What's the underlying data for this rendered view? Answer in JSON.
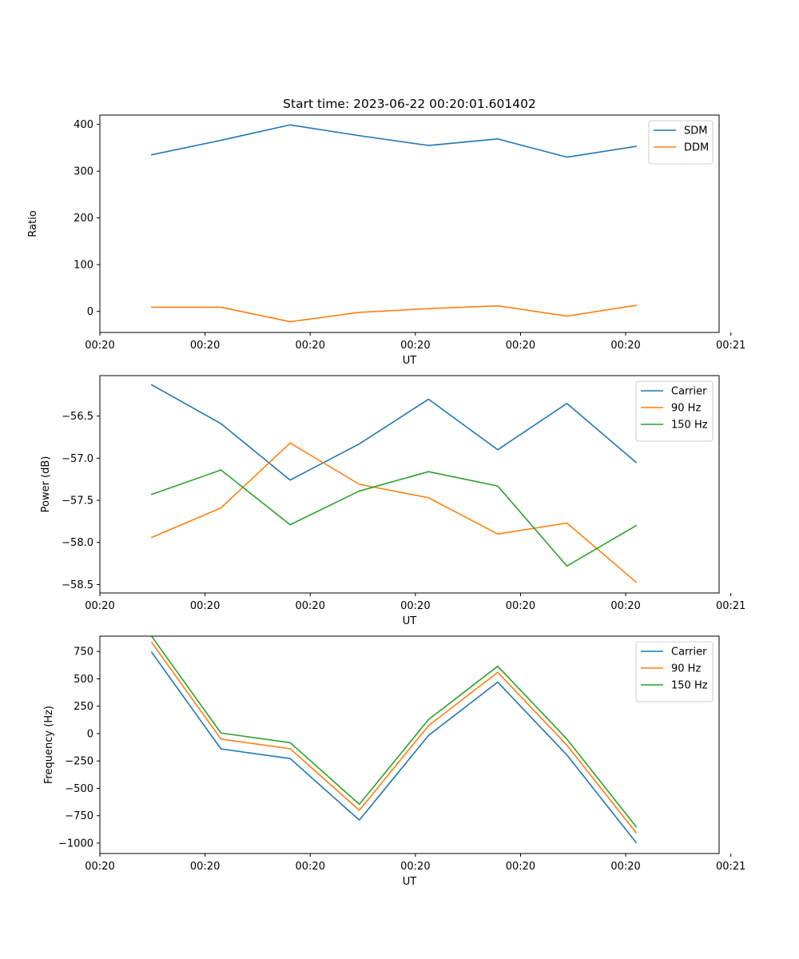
{
  "chart_data": [
    {
      "type": "line",
      "title": "Start time: 2023-06-22 00:20:01.601402",
      "xlabel": "UT",
      "ylabel": "Ratio",
      "x": [
        1,
        2,
        3,
        4,
        5,
        6,
        7,
        8
      ],
      "xlim": [
        0.25,
        9.2
      ],
      "ylim": [
        -45,
        420
      ],
      "xticks": [
        {
          "value": 0.25,
          "label": "00:20"
        },
        {
          "value": 1.77,
          "label": "00:20"
        },
        {
          "value": 3.29,
          "label": "00:20"
        },
        {
          "value": 4.81,
          "label": "00:20"
        },
        {
          "value": 6.33,
          "label": "00:20"
        },
        {
          "value": 7.85,
          "label": "00:20"
        },
        {
          "value": 9.37,
          "label": "00:21"
        }
      ],
      "yticks": [
        {
          "value": 0,
          "label": "0"
        },
        {
          "value": 100,
          "label": "100"
        },
        {
          "value": 200,
          "label": "200"
        },
        {
          "value": 300,
          "label": "300"
        },
        {
          "value": 400,
          "label": "400"
        }
      ],
      "series": [
        {
          "name": "SDM",
          "color": "#1f77b4",
          "values": [
            335,
            366,
            399,
            376,
            355,
            369,
            330,
            353
          ]
        },
        {
          "name": "DDM",
          "color": "#ff7f0e",
          "values": [
            9,
            9,
            -22,
            -2,
            6,
            12,
            -10,
            13
          ]
        }
      ],
      "legend": "top-right",
      "grid": false
    },
    {
      "type": "line",
      "title": "",
      "xlabel": "UT",
      "ylabel": "Power (dB)",
      "x": [
        1,
        2,
        3,
        4,
        5,
        6,
        7,
        8
      ],
      "xlim": [
        0.25,
        9.2
      ],
      "ylim": [
        -58.6,
        -56.02
      ],
      "xticks": [
        {
          "value": 0.25,
          "label": "00:20"
        },
        {
          "value": 1.77,
          "label": "00:20"
        },
        {
          "value": 3.29,
          "label": "00:20"
        },
        {
          "value": 4.81,
          "label": "00:20"
        },
        {
          "value": 6.33,
          "label": "00:20"
        },
        {
          "value": 7.85,
          "label": "00:20"
        },
        {
          "value": 9.37,
          "label": "00:21"
        }
      ],
      "yticks": [
        {
          "value": -58.5,
          "label": "−58.5"
        },
        {
          "value": -58.0,
          "label": "−58.0"
        },
        {
          "value": -57.5,
          "label": "−57.5"
        },
        {
          "value": -57.0,
          "label": "−57.0"
        },
        {
          "value": -56.5,
          "label": "−56.5"
        }
      ],
      "series": [
        {
          "name": "Carrier",
          "color": "#1f77b4",
          "values": [
            -56.13,
            -56.59,
            -57.26,
            -56.83,
            -56.3,
            -56.9,
            -56.35,
            -57.05
          ]
        },
        {
          "name": "90 Hz",
          "color": "#ff7f0e",
          "values": [
            -57.94,
            -57.59,
            -56.82,
            -57.31,
            -57.47,
            -57.9,
            -57.77,
            -58.47
          ]
        },
        {
          "name": "150 Hz",
          "color": "#2ca02c",
          "values": [
            -57.43,
            -57.14,
            -57.79,
            -57.39,
            -57.16,
            -57.33,
            -58.28,
            -57.8
          ]
        }
      ],
      "legend": "top-right",
      "grid": false
    },
    {
      "type": "line",
      "title": "",
      "xlabel": "UT",
      "ylabel": "Frequency (Hz)",
      "x": [
        1,
        2,
        3,
        4,
        5,
        6,
        7,
        8
      ],
      "xlim": [
        0.25,
        9.2
      ],
      "ylim": [
        -1095,
        890
      ],
      "xticks": [
        {
          "value": 0.25,
          "label": "00:20"
        },
        {
          "value": 1.77,
          "label": "00:20"
        },
        {
          "value": 3.29,
          "label": "00:20"
        },
        {
          "value": 4.81,
          "label": "00:20"
        },
        {
          "value": 6.33,
          "label": "00:20"
        },
        {
          "value": 7.85,
          "label": "00:20"
        },
        {
          "value": 9.37,
          "label": "00:21"
        }
      ],
      "yticks": [
        {
          "value": -1000,
          "label": "−1000"
        },
        {
          "value": -750,
          "label": "−750"
        },
        {
          "value": -500,
          "label": "−500"
        },
        {
          "value": -250,
          "label": "−250"
        },
        {
          "value": 0,
          "label": "0"
        },
        {
          "value": 250,
          "label": "250"
        },
        {
          "value": 500,
          "label": "500"
        },
        {
          "value": 750,
          "label": "750"
        }
      ],
      "series": [
        {
          "name": "Carrier",
          "color": "#1f77b4",
          "values": [
            742,
            -140,
            -228,
            -790,
            -17,
            470,
            -195,
            -995
          ]
        },
        {
          "name": "90 Hz",
          "color": "#ff7f0e",
          "values": [
            832,
            -50,
            -138,
            -700,
            73,
            560,
            -105,
            -905
          ]
        },
        {
          "name": "150 Hz",
          "color": "#2ca02c",
          "values": [
            887,
            5,
            -83,
            -645,
            128,
            615,
            -50,
            -850
          ]
        }
      ],
      "legend": "top-right",
      "grid": false
    }
  ]
}
